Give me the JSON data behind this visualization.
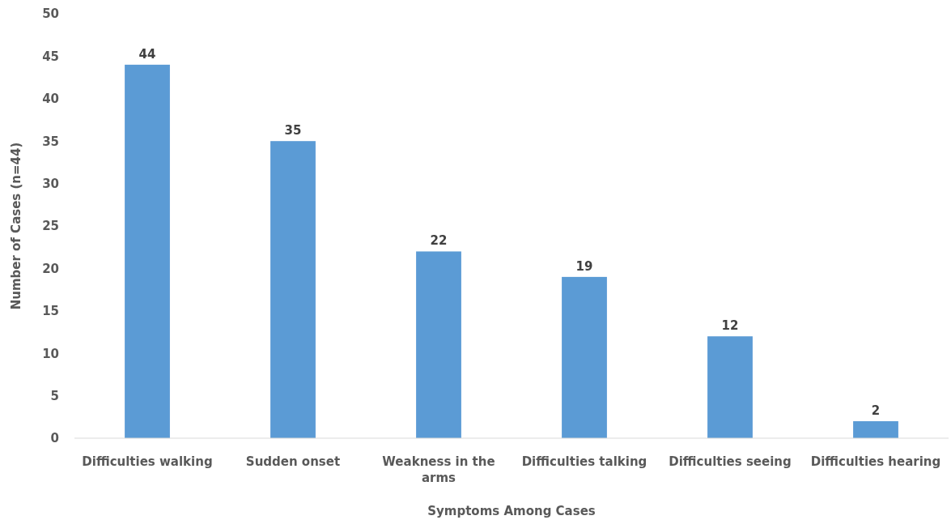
{
  "chart_data": {
    "type": "bar",
    "xlabel": "Symptoms Among Cases",
    "ylabel": "Number of Cases (n=44)",
    "categories": [
      "Difficulties walking",
      "Sudden onset",
      "Weakness in the arms",
      "Difficulties talking",
      "Difficulties seeing",
      "Difficulties hearing"
    ],
    "values": [
      44,
      35,
      22,
      19,
      12,
      2
    ],
    "color": "#5b9bd5",
    "ylim": [
      0,
      50
    ],
    "yticks": [
      0,
      5,
      10,
      15,
      20,
      25,
      30,
      35,
      40,
      45,
      50
    ],
    "grid": false,
    "data_labels": true
  }
}
